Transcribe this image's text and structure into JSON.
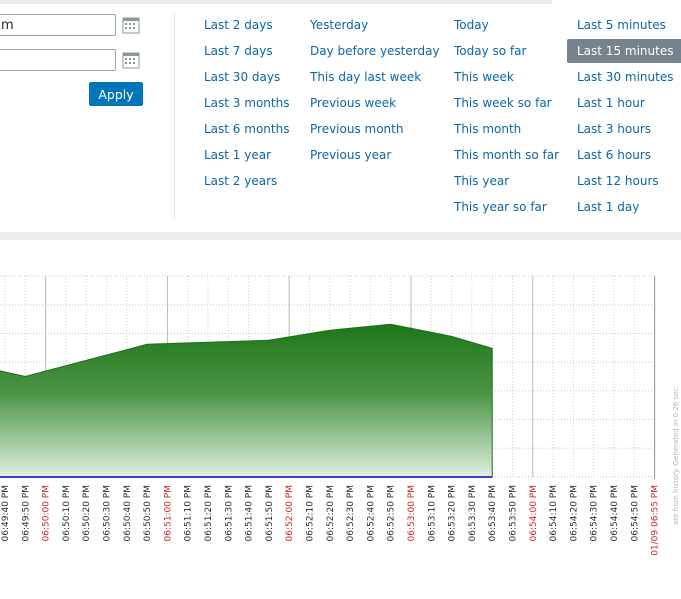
{
  "filter": {
    "from_value": "m",
    "to_value": "",
    "apply_label": "Apply",
    "quick_ranges": [
      [
        "Last 2 days",
        "Last 7 days",
        "Last 30 days",
        "Last 3 months",
        "Last 6 months",
        "Last 1 year",
        "Last 2 years"
      ],
      [
        "Yesterday",
        "Day before yesterday",
        "This day last week",
        "Previous week",
        "Previous month",
        "Previous year"
      ],
      [
        "Today",
        "Today so far",
        "This week",
        "This week so far",
        "This month",
        "This month so far",
        "This year",
        "This year so far"
      ],
      [
        "Last 5 minutes",
        "Last 15 minutes",
        "Last 30 minutes",
        "Last 1 hour",
        "Last 3 hours",
        "Last 6 hours",
        "Last 12 hours",
        "Last 1 day"
      ]
    ],
    "selected_range": "Last 15 minutes"
  },
  "graph": {
    "x_labels": [
      "06:49:40 PM",
      "06:49:50 PM",
      "06:50:00 PM",
      "06:50:10 PM",
      "06:50:20 PM",
      "06:50:30 PM",
      "06:50:40 PM",
      "06:50:50 PM",
      "06:51:00 PM",
      "06:51:10 PM",
      "06:51:20 PM",
      "06:51:30 PM",
      "06:51:40 PM",
      "06:51:50 PM",
      "06:52:00 PM",
      "06:52:10 PM",
      "06:52:20 PM",
      "06:52:30 PM",
      "06:52:40 PM",
      "06:52:50 PM",
      "06:53:00 PM",
      "06:53:10 PM",
      "06:53:20 PM",
      "06:53:30 PM",
      "06:53:40 PM",
      "06:53:50 PM",
      "06:54:00 PM",
      "06:54:10 PM",
      "06:54:20 PM",
      "06:54:30 PM",
      "06:54:40 PM",
      "06:54:50 PM",
      "01/09 06:55 PM"
    ],
    "major_labels": [
      "06:50:00 PM",
      "06:51:00 PM",
      "06:52:00 PM",
      "06:53:00 PM",
      "06:54:00 PM",
      "01/09 06:55 PM"
    ],
    "side_note": "ate from history. Generated in 0.26 sec.",
    "colors": {
      "fill": "#237a1f",
      "baseline": "#3c3cd0",
      "major_label": "#d62222",
      "label": "#1f2c33"
    }
  },
  "chart_data": {
    "type": "area",
    "x": [
      "06:49:40 PM",
      "06:49:50 PM",
      "06:50:20 PM",
      "06:50:50 PM",
      "06:51:20 PM",
      "06:51:50 PM",
      "06:52:20 PM",
      "06:52:50 PM",
      "06:53:20 PM",
      "06:53:40 PM"
    ],
    "series": [
      {
        "values": [
          0.53,
          0.5,
          0.58,
          0.66,
          0.67,
          0.68,
          0.73,
          0.76,
          0.7,
          0.64
        ]
      }
    ],
    "ylim": [
      0,
      1
    ]
  }
}
